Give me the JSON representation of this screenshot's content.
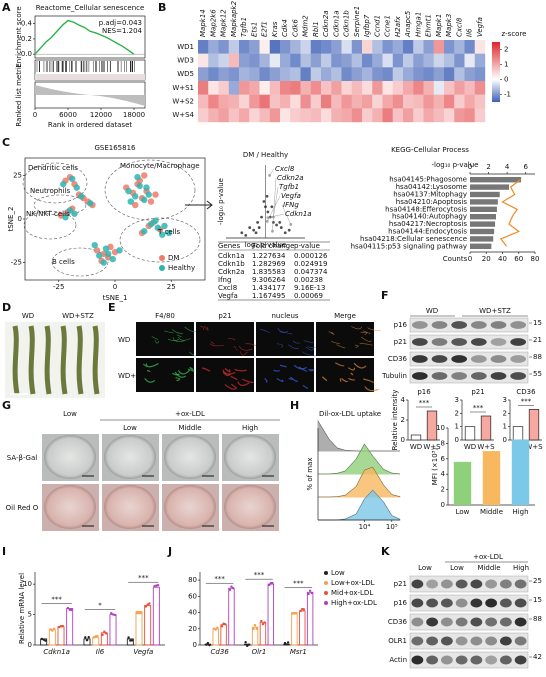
{
  "labels": [
    "A",
    "B",
    "C",
    "D",
    "E",
    "F",
    "G",
    "H",
    "I",
    "J",
    "K"
  ],
  "chart_data": [
    {
      "type": "line",
      "title": "Reactome_Cellular senescence",
      "annotations": [
        "p.adj=0.043",
        "NES=1.204"
      ],
      "ylabel": "Enrichment score",
      "ylabel2": "Ranked list metric",
      "xlabel": "Rank in ordered dataset",
      "x": [
        0,
        1000,
        2000,
        3000,
        4000,
        5000,
        6000,
        7000,
        8000,
        9000,
        10000,
        11000,
        12000,
        13000,
        14000,
        15000,
        16000,
        17000,
        18000
      ],
      "values": [
        0,
        0.08,
        0.16,
        0.22,
        0.3,
        0.38,
        0.44,
        0.42,
        0.38,
        0.35,
        0.3,
        0.28,
        0.25,
        0.22,
        0.18,
        0.14,
        0.1,
        0.05,
        0
      ],
      "color": "#2bb24c",
      "xlim": [
        0,
        20000
      ],
      "xticks": [
        0,
        6000,
        12000,
        18000
      ],
      "ylim": [
        -0.05,
        0.5
      ],
      "yticks": [
        {
          "value": 0,
          "label": "0.0"
        },
        {
          "value": 0.2,
          "label": "0.2"
        },
        {
          "value": 0.4,
          "label": "0.4"
        }
      ]
    },
    {
      "type": "heatmap",
      "rows": [
        "WD1",
        "WD3",
        "WD5",
        "W+S1",
        "W+S2",
        "W+S4"
      ],
      "columns": [
        "Mapk14",
        "Map2k6",
        "Mapk12",
        "Mapkapk2",
        "Tgfb1",
        "Ets1",
        "E2f1",
        "Kras",
        "Cdk4",
        "Cdk6",
        "Mdm2",
        "Rbl1",
        "Cdkn2a",
        "Cdkn1a",
        "Cdkn1b",
        "Serpine1",
        "Igfbp7",
        "Ccnd1",
        "Ccne1",
        "H2afx",
        "Anapc5",
        "Hmga1",
        "Ehmt1",
        "Mapk1",
        "Mapk3",
        "Cxcl8",
        "Il6",
        "Vegfa"
      ],
      "values": [
        [
          -1.2,
          -0.8,
          -1.0,
          -0.5,
          -1.1,
          -0.9,
          0.2,
          -1.3,
          -1.0,
          -0.7,
          -0.4,
          -1.2,
          -1.1,
          -0.9,
          -0.3,
          -1.0,
          0.5,
          -0.6,
          -1.0,
          -0.8,
          -1.2,
          -0.5,
          -0.9,
          1.2,
          -1.0,
          -0.7,
          -1.1,
          0.3
        ],
        [
          0.3,
          -0.6,
          -0.4,
          0.8,
          -0.9,
          -1.0,
          -0.7,
          -0.2,
          -0.8,
          -1.1,
          -0.6,
          -0.9,
          -0.5,
          -1.0,
          -0.9,
          -0.6,
          -1.1,
          -0.8,
          -0.3,
          -1.0,
          -0.5,
          -0.9,
          -0.7,
          -0.4,
          -0.6,
          -1.0,
          -0.2,
          -0.8
        ],
        [
          -0.9,
          -1.1,
          -0.9,
          -1.0,
          -0.7,
          -0.8,
          -1.1,
          -0.9,
          -0.7,
          -0.6,
          -1.2,
          -0.5,
          -0.8,
          -0.6,
          -1.1,
          -0.9,
          -0.7,
          -1.0,
          -1.1,
          -0.5,
          -0.8,
          -1.0,
          -1.1,
          -0.9,
          -1.2,
          -0.6,
          -0.9,
          -1.0
        ],
        [
          1.5,
          0.3,
          0.6,
          -0.8,
          1.2,
          1.0,
          0.2,
          0.8,
          1.4,
          1.5,
          0.9,
          1.3,
          0.7,
          1.1,
          0.5,
          0.8,
          0.4,
          1.2,
          0.3,
          0.6,
          1.0,
          1.4,
          0.9,
          -0.2,
          0.7,
          1.1,
          0.8,
          1.3
        ],
        [
          0.8,
          1.4,
          1.0,
          0.9,
          0.5,
          1.2,
          1.6,
          0.7,
          0.9,
          0.4,
          1.3,
          0.6,
          1.5,
          0.8,
          1.2,
          0.9,
          1.1,
          0.5,
          1.0,
          1.3,
          0.7,
          0.8,
          1.2,
          0.9,
          1.4,
          0.6,
          1.0,
          0.7
        ],
        [
          0.6,
          0.9,
          1.1,
          0.7,
          1.0,
          0.5,
          0.8,
          1.2,
          0.3,
          0.6,
          0.7,
          0.8,
          0.4,
          0.9,
          1.0,
          1.3,
          0.6,
          0.9,
          1.5,
          0.7,
          1.1,
          0.6,
          1.0,
          0.8,
          0.5,
          1.2,
          1.3,
          0.6
        ]
      ],
      "legend_title": "z-score",
      "colorbar_ticks": [
        -1,
        0,
        1,
        2
      ],
      "colorbar_lim": [
        -1.5,
        2.5
      ],
      "colors": [
        "#3d5fb5",
        "#ffffff",
        "#e0262a"
      ]
    },
    {
      "type": "scatter",
      "title": "GSE165816",
      "xlabel": "tSNE_1",
      "ylabel": "tSNE_2",
      "xlim": [
        -40,
        40
      ],
      "ylim": [
        -35,
        35
      ],
      "xticks": [
        -25,
        0,
        25
      ],
      "yticks": [
        -25,
        0,
        25
      ],
      "clusters": [
        "Dendritic cells",
        "Neutrophils",
        "NK/NKT cells",
        "Monocyte/Macrophage",
        "T cells",
        "B cells"
      ],
      "series": [
        {
          "name": "DM",
          "color": "#f07a6a",
          "x": [
            -22,
            -20,
            -18,
            -16,
            -14,
            -24,
            -21,
            -19,
            -12,
            -10,
            5,
            8,
            10,
            12,
            14,
            16,
            9,
            11,
            13,
            18,
            15,
            20,
            12,
            17,
            -8,
            -5,
            -3,
            -6,
            -2,
            0
          ],
          "values": [
            22,
            24,
            20,
            14,
            12,
            2,
            4,
            6,
            10,
            8,
            18,
            15,
            20,
            12,
            16,
            10,
            8,
            22,
            25,
            14,
            -4,
            -6,
            -8,
            -2,
            -18,
            -20,
            -22,
            -24,
            -16,
            -19
          ]
        },
        {
          "name": "Healthy",
          "color": "#2bb5b0",
          "x": [
            -23,
            -19,
            -17,
            -15,
            -22,
            -20,
            -18,
            -11,
            6,
            9,
            11,
            13,
            15,
            7,
            10,
            14,
            16,
            19,
            21,
            13,
            18,
            22,
            -7,
            -4,
            -1,
            -5,
            -3,
            2,
            -9,
            24
          ],
          "values": [
            20,
            23,
            18,
            13,
            1,
            5,
            3,
            9,
            16,
            13,
            19,
            11,
            14,
            10,
            24,
            18,
            -3,
            -5,
            -9,
            -7,
            -1,
            -4,
            -21,
            -17,
            -23,
            -25,
            -20,
            -18,
            -15,
            -8
          ]
        }
      ]
    },
    {
      "type": "scatter",
      "title": "DM / Healthy",
      "xlabel": "log₂ p-value",
      "ylabel": "-log₁₀ p-value",
      "xlim": [
        -5,
        5
      ],
      "ylim": [
        0,
        14
      ],
      "series": [
        {
          "color": "#333333",
          "x": [
            -3,
            -2,
            -1.5,
            -1,
            -0.5,
            0,
            0.3,
            0.6,
            1,
            1.4,
            2,
            2.5,
            -0.8,
            0.8,
            -2.5,
            3,
            0.2,
            -0.2,
            1.8,
            -1.2
          ],
          "values": [
            1,
            2,
            1.5,
            3,
            4,
            6,
            5,
            4,
            3,
            2.5,
            2,
            1,
            2,
            6,
            0.5,
            1.5,
            8,
            7,
            3,
            1
          ]
        },
        {
          "color": "#999999",
          "x": [
            0.52,
            0.88,
            1.0,
            0.22,
            3.2,
            0.3
          ],
          "values": [
            12,
            1.3,
            4,
            3.2,
            2.6,
            3.9
          ],
          "labels": [
            "Cxcl8",
            "Cdkn2a",
            "Tgfb1",
            "Vegfa",
            "IFNg",
            "Cdkn1a"
          ]
        }
      ]
    },
    {
      "type": "hbar",
      "title": "KEGG-Cellular Process",
      "categories": [
        "hsa04145:Phagosome",
        "hsa04142:Lysosome",
        "hsa04137:Mitophagy",
        "hsa04210:Apoptosis",
        "hsa04148:Efferocytosis",
        "hsa04140:Autophagy",
        "hsa04217:Necroptosis",
        "hsa04144:Endocytosis",
        "hsa04218:Cellular senescence",
        "hsa04115:p53 signaling pathway"
      ],
      "values": [
        5.5,
        4.2,
        3.2,
        3.0,
        2.9,
        2.8,
        2.7,
        2.6,
        2.5,
        2.3
      ],
      "color": "#777777",
      "xlabel": "-log₁₀ p-value",
      "xlim": [
        0,
        7
      ],
      "xticks": [
        0,
        2,
        4,
        6
      ],
      "highlight": 8,
      "highlight_color": "#e8402a",
      "counts": [
        62,
        50,
        55,
        40,
        58,
        52,
        48,
        60,
        38,
        45
      ],
      "count_color": "#f08a24",
      "x2label": "Counts",
      "x2lim": [
        0,
        80
      ],
      "x2ticks": [
        0,
        20,
        40,
        60,
        80
      ]
    },
    {
      "type": "bar",
      "title": "p16",
      "ylabel": "Relative intensity",
      "categories": [
        "WD",
        "W+S"
      ],
      "values": [
        0.5,
        2.9
      ],
      "colors": [
        "#ffffff",
        "#f7a8a0"
      ],
      "stroke": "#222222",
      "ylim": [
        0,
        4
      ],
      "yticks": [
        0,
        2,
        4
      ],
      "stars": "***"
    },
    {
      "type": "bar",
      "title": "p21",
      "categories": [
        "WD",
        "W+S"
      ],
      "values": [
        1.0,
        1.8
      ],
      "colors": [
        "#ffffff",
        "#f7a8a0"
      ],
      "stroke": "#222222",
      "ylim": [
        0,
        3
      ],
      "yticks": [
        0,
        1,
        2,
        3
      ],
      "stars": "***"
    },
    {
      "type": "bar",
      "title": "CD36",
      "categories": [
        "WD",
        "W+S"
      ],
      "values": [
        1.0,
        2.3
      ],
      "colors": [
        "#ffffff",
        "#f7a8a0"
      ],
      "stroke": "#222222",
      "ylim": [
        0,
        3
      ],
      "yticks": [
        0,
        1,
        2,
        3
      ],
      "stars": "***"
    },
    {
      "type": "density",
      "title": "Dil-ox-LDL uptake",
      "ylabel": "% of max",
      "xscale": "log",
      "xlim": [
        200,
        200000
      ],
      "xticks": [
        {
          "value": 10000,
          "label": "10⁴"
        },
        {
          "value": 100000,
          "label": "10⁵"
        }
      ],
      "x": [
        200,
        500,
        1000,
        2000,
        5000,
        10000,
        20000,
        50000,
        100000,
        200000
      ],
      "series": [
        {
          "color": "#9a9a9a",
          "values": [
            100,
            40,
            10,
            2,
            0,
            0,
            0,
            0,
            0,
            0
          ]
        },
        {
          "color": "#8fd07a",
          "values": [
            0,
            0,
            2,
            10,
            50,
            100,
            60,
            15,
            3,
            0
          ]
        },
        {
          "color": "#f7b860",
          "values": [
            0,
            0,
            1,
            6,
            35,
            90,
            100,
            40,
            8,
            1
          ]
        },
        {
          "color": "#7cc8e8",
          "values": [
            0,
            0,
            0,
            3,
            20,
            70,
            100,
            60,
            15,
            2
          ]
        }
      ]
    },
    {
      "type": "bar",
      "ylabel": "MFI (×10³)",
      "categories": [
        "Low",
        "Middle",
        "High"
      ],
      "values": [
        5.6,
        7.0,
        8.5
      ],
      "colors": [
        "#8fd07a",
        "#f7b860",
        "#7cc8e8"
      ],
      "ylim": [
        0,
        10
      ],
      "yticks": [
        0,
        2,
        4,
        6,
        8,
        10
      ]
    },
    {
      "type": "bar",
      "ylabel": "Relative mRNA level",
      "italic": true,
      "categories": [
        "Cdkn1a",
        "Il6",
        "Vegfa"
      ],
      "series": [
        {
          "color": "#222222",
          "values": [
            1,
            1,
            1
          ]
        },
        {
          "color": "#f5a04a",
          "values": [
            2.5,
            1.2,
            5.5
          ]
        },
        {
          "color": "#e8503a",
          "values": [
            3,
            2,
            6.5
          ]
        },
        {
          "color": "#b040c0",
          "values": [
            6,
            5,
            9.5
          ]
        }
      ],
      "ylim": [
        0,
        12
      ],
      "yticks": [
        0,
        5,
        10
      ],
      "stars": [
        "***",
        "*",
        "***"
      ]
    },
    {
      "type": "bar",
      "italic": true,
      "categories": [
        "Cd36",
        "Olr1",
        "Msr1"
      ],
      "series": [
        {
          "name": "Low",
          "color": "#222222",
          "values": [
            1,
            1,
            1
          ]
        },
        {
          "name": "Low+ox-LDL",
          "color": "#f5a04a",
          "values": [
            20,
            22,
            40
          ]
        },
        {
          "name": "Mid+ox-LDL",
          "color": "#e8503a",
          "values": [
            25,
            28,
            42
          ]
        },
        {
          "name": "High+ox-LDL",
          "color": "#b040c0",
          "values": [
            70,
            75,
            65
          ]
        }
      ],
      "ylim": [
        0,
        90
      ],
      "yticks": [
        0,
        20,
        40,
        60,
        80
      ],
      "stars": [
        "***",
        "***",
        "***"
      ]
    }
  ],
  "table": {
    "header": [
      "Genes",
      "Fold change",
      "p-value"
    ],
    "rows": [
      [
        "Cdkn1a",
        "1.227634",
        "0.000126"
      ],
      [
        "Cdkn1b",
        "1.282969",
        "0.024919"
      ],
      [
        "Cdkn2a",
        "1.835583",
        "0.047374"
      ],
      [
        "Ifng",
        "9.306264",
        "0.00238"
      ],
      [
        "Cxcl8",
        "1.434177",
        "9.16E-13"
      ],
      [
        "Vegfa",
        "1.167495",
        "0.00069"
      ]
    ]
  },
  "panel_D": {
    "labels": [
      "WD",
      "WD+STZ"
    ]
  },
  "panel_E": {
    "columns": [
      "F4/80",
      "p21",
      "nucleus",
      "Merge"
    ],
    "rows": [
      "WD",
      "WD+ STZ"
    ]
  },
  "panel_F": {
    "groups": [
      "WD",
      "WD+STZ"
    ],
    "bands": [
      {
        "name": "p16",
        "size": "15"
      },
      {
        "name": "p21",
        "size": "21"
      },
      {
        "name": "CD36",
        "size": "88"
      },
      {
        "name": "Tubulin",
        "size": "55"
      }
    ]
  },
  "panel_G": {
    "group": "+ox-LDL",
    "columns": [
      "Low",
      "Low",
      "Middle",
      "High"
    ],
    "rows": [
      "SA-β-Gal",
      "Oil Red O"
    ]
  },
  "panel_K": {
    "group": "+ox-LDL",
    "columns": [
      "Low",
      "Low",
      "Middle",
      "High"
    ],
    "bands": [
      {
        "name": "p21",
        "size": "25"
      },
      {
        "name": "p16",
        "size": "15"
      },
      {
        "name": "CD36",
        "size": "88"
      },
      {
        "name": "OLR1"
      },
      {
        "name": "Actin",
        "size": "42"
      }
    ]
  }
}
